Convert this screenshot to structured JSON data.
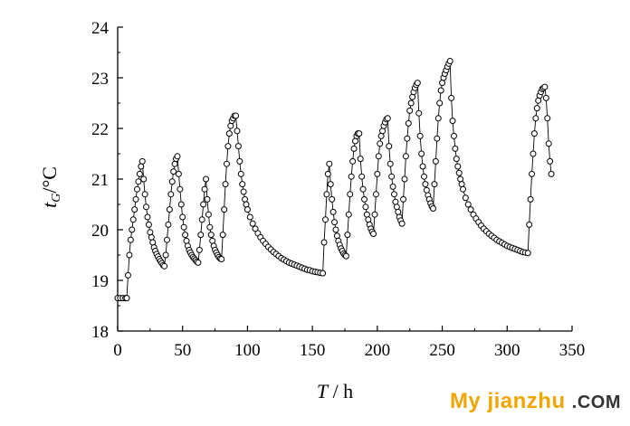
{
  "chart_data": {
    "type": "scatter",
    "xlabel": "T / h",
    "ylabel": "tG/°C",
    "xlim": [
      0,
      350
    ],
    "ylim": [
      18,
      24
    ],
    "x_ticks": [
      "0",
      "50",
      "100",
      "150",
      "200",
      "250",
      "300",
      "350"
    ],
    "y_ticks": [
      "18",
      "19",
      "20",
      "21",
      "22",
      "23",
      "24"
    ],
    "grid": false,
    "marker": "open-circle",
    "line": true,
    "series_color": "#000000",
    "points": [
      [
        0,
        18.65
      ],
      [
        2,
        18.65
      ],
      [
        4,
        18.65
      ],
      [
        6,
        18.65
      ],
      [
        7,
        18.65
      ],
      [
        8,
        19.1
      ],
      [
        9,
        19.5
      ],
      [
        10,
        19.8
      ],
      [
        11,
        20.0
      ],
      [
        12,
        20.2
      ],
      [
        13,
        20.4
      ],
      [
        14,
        20.6
      ],
      [
        15,
        20.8
      ],
      [
        16,
        20.95
      ],
      [
        17,
        21.1
      ],
      [
        18,
        21.25
      ],
      [
        19,
        21.35
      ],
      [
        20,
        21.0
      ],
      [
        21,
        20.7
      ],
      [
        22,
        20.45
      ],
      [
        23,
        20.25
      ],
      [
        24,
        20.1
      ],
      [
        25,
        19.95
      ],
      [
        26,
        19.85
      ],
      [
        27,
        19.75
      ],
      [
        28,
        19.65
      ],
      [
        29,
        19.58
      ],
      [
        30,
        19.52
      ],
      [
        31,
        19.47
      ],
      [
        32,
        19.42
      ],
      [
        33,
        19.38
      ],
      [
        34,
        19.34
      ],
      [
        35,
        19.3
      ],
      [
        36,
        19.28
      ],
      [
        37,
        19.5
      ],
      [
        38,
        19.8
      ],
      [
        39,
        20.1
      ],
      [
        40,
        20.4
      ],
      [
        41,
        20.7
      ],
      [
        42,
        20.95
      ],
      [
        43,
        21.15
      ],
      [
        44,
        21.3
      ],
      [
        45,
        21.4
      ],
      [
        46,
        21.45
      ],
      [
        47,
        21.1
      ],
      [
        48,
        20.8
      ],
      [
        49,
        20.5
      ],
      [
        50,
        20.25
      ],
      [
        51,
        20.05
      ],
      [
        52,
        19.9
      ],
      [
        53,
        19.78
      ],
      [
        54,
        19.68
      ],
      [
        55,
        19.6
      ],
      [
        56,
        19.55
      ],
      [
        57,
        19.5
      ],
      [
        58,
        19.46
      ],
      [
        59,
        19.43
      ],
      [
        60,
        19.4
      ],
      [
        61,
        19.37
      ],
      [
        62,
        19.35
      ],
      [
        63,
        19.6
      ],
      [
        64,
        19.9
      ],
      [
        65,
        20.2
      ],
      [
        66,
        20.5
      ],
      [
        67,
        20.8
      ],
      [
        68,
        21.0
      ],
      [
        69,
        20.6
      ],
      [
        70,
        20.3
      ],
      [
        71,
        20.05
      ],
      [
        72,
        19.9
      ],
      [
        73,
        19.78
      ],
      [
        74,
        19.68
      ],
      [
        75,
        19.6
      ],
      [
        76,
        19.55
      ],
      [
        77,
        19.5
      ],
      [
        78,
        19.46
      ],
      [
        79,
        19.43
      ],
      [
        80,
        19.42
      ],
      [
        81,
        19.9
      ],
      [
        82,
        20.4
      ],
      [
        83,
        20.9
      ],
      [
        84,
        21.3
      ],
      [
        85,
        21.65
      ],
      [
        86,
        21.9
      ],
      [
        87,
        22.05
      ],
      [
        88,
        22.15
      ],
      [
        89,
        22.2
      ],
      [
        90,
        22.25
      ],
      [
        91,
        22.25
      ],
      [
        92,
        21.95
      ],
      [
        93,
        21.65
      ],
      [
        94,
        21.35
      ],
      [
        95,
        21.1
      ],
      [
        96,
        20.9
      ],
      [
        97,
        20.75
      ],
      [
        98,
        20.6
      ],
      [
        99,
        20.5
      ],
      [
        100,
        20.4
      ],
      [
        102,
        20.25
      ],
      [
        104,
        20.12
      ],
      [
        106,
        20.02
      ],
      [
        108,
        19.93
      ],
      [
        110,
        19.85
      ],
      [
        112,
        19.78
      ],
      [
        114,
        19.72
      ],
      [
        116,
        19.66
      ],
      [
        118,
        19.61
      ],
      [
        120,
        19.56
      ],
      [
        122,
        19.52
      ],
      [
        124,
        19.48
      ],
      [
        126,
        19.44
      ],
      [
        128,
        19.41
      ],
      [
        130,
        19.38
      ],
      [
        132,
        19.35
      ],
      [
        134,
        19.33
      ],
      [
        136,
        19.31
      ],
      [
        138,
        19.29
      ],
      [
        140,
        19.27
      ],
      [
        142,
        19.25
      ],
      [
        144,
        19.23
      ],
      [
        146,
        19.21
      ],
      [
        148,
        19.2
      ],
      [
        150,
        19.18
      ],
      [
        152,
        19.17
      ],
      [
        154,
        19.16
      ],
      [
        156,
        19.15
      ],
      [
        158,
        19.14
      ],
      [
        159,
        19.75
      ],
      [
        160,
        20.2
      ],
      [
        161,
        20.7
      ],
      [
        162,
        21.1
      ],
      [
        163,
        21.3
      ],
      [
        164,
        20.9
      ],
      [
        165,
        20.6
      ],
      [
        166,
        20.35
      ],
      [
        167,
        20.15
      ],
      [
        168,
        20.0
      ],
      [
        169,
        19.88
      ],
      [
        170,
        19.78
      ],
      [
        171,
        19.7
      ],
      [
        172,
        19.63
      ],
      [
        173,
        19.58
      ],
      [
        174,
        19.53
      ],
      [
        175,
        19.5
      ],
      [
        176,
        19.48
      ],
      [
        177,
        19.9
      ],
      [
        178,
        20.3
      ],
      [
        179,
        20.7
      ],
      [
        180,
        21.05
      ],
      [
        181,
        21.35
      ],
      [
        182,
        21.6
      ],
      [
        183,
        21.75
      ],
      [
        184,
        21.85
      ],
      [
        185,
        21.9
      ],
      [
        186,
        21.9
      ],
      [
        187,
        21.4
      ],
      [
        188,
        21.05
      ],
      [
        189,
        20.8
      ],
      [
        190,
        20.6
      ],
      [
        191,
        20.45
      ],
      [
        192,
        20.3
      ],
      [
        193,
        20.2
      ],
      [
        194,
        20.1
      ],
      [
        195,
        20.02
      ],
      [
        196,
        19.96
      ],
      [
        197,
        19.92
      ],
      [
        198,
        20.3
      ],
      [
        199,
        20.7
      ],
      [
        200,
        21.1
      ],
      [
        201,
        21.45
      ],
      [
        202,
        21.7
      ],
      [
        203,
        21.85
      ],
      [
        204,
        21.95
      ],
      [
        205,
        22.05
      ],
      [
        206,
        22.12
      ],
      [
        207,
        22.18
      ],
      [
        208,
        22.2
      ],
      [
        209,
        21.65
      ],
      [
        210,
        21.3
      ],
      [
        211,
        21.05
      ],
      [
        212,
        20.85
      ],
      [
        213,
        20.7
      ],
      [
        214,
        20.55
      ],
      [
        215,
        20.45
      ],
      [
        216,
        20.35
      ],
      [
        217,
        20.25
      ],
      [
        218,
        20.18
      ],
      [
        219,
        20.12
      ],
      [
        220,
        20.6
      ],
      [
        221,
        21.0
      ],
      [
        222,
        21.45
      ],
      [
        223,
        21.8
      ],
      [
        224,
        22.1
      ],
      [
        225,
        22.35
      ],
      [
        226,
        22.5
      ],
      [
        227,
        22.62
      ],
      [
        228,
        22.72
      ],
      [
        229,
        22.8
      ],
      [
        230,
        22.86
      ],
      [
        231,
        22.9
      ],
      [
        232,
        22.3
      ],
      [
        233,
        21.85
      ],
      [
        234,
        21.5
      ],
      [
        235,
        21.25
      ],
      [
        236,
        21.05
      ],
      [
        237,
        20.9
      ],
      [
        238,
        20.78
      ],
      [
        239,
        20.68
      ],
      [
        240,
        20.6
      ],
      [
        241,
        20.52
      ],
      [
        242,
        20.46
      ],
      [
        243,
        20.42
      ],
      [
        244,
        20.9
      ],
      [
        245,
        21.35
      ],
      [
        246,
        21.8
      ],
      [
        247,
        22.2
      ],
      [
        248,
        22.5
      ],
      [
        249,
        22.75
      ],
      [
        250,
        22.9
      ],
      [
        251,
        23.0
      ],
      [
        252,
        23.08
      ],
      [
        253,
        23.15
      ],
      [
        254,
        23.22
      ],
      [
        255,
        23.28
      ],
      [
        256,
        23.33
      ],
      [
        257,
        22.6
      ],
      [
        258,
        22.15
      ],
      [
        259,
        21.85
      ],
      [
        260,
        21.6
      ],
      [
        261,
        21.4
      ],
      [
        262,
        21.25
      ],
      [
        263,
        21.12
      ],
      [
        264,
        21.0
      ],
      [
        265,
        20.9
      ],
      [
        266,
        20.8
      ],
      [
        268,
        20.63
      ],
      [
        270,
        20.5
      ],
      [
        272,
        20.4
      ],
      [
        274,
        20.3
      ],
      [
        276,
        20.22
      ],
      [
        278,
        20.15
      ],
      [
        280,
        20.08
      ],
      [
        282,
        20.02
      ],
      [
        284,
        19.97
      ],
      [
        286,
        19.92
      ],
      [
        288,
        19.88
      ],
      [
        290,
        19.84
      ],
      [
        292,
        19.8
      ],
      [
        294,
        19.77
      ],
      [
        296,
        19.74
      ],
      [
        298,
        19.71
      ],
      [
        300,
        19.68
      ],
      [
        302,
        19.66
      ],
      [
        304,
        19.64
      ],
      [
        306,
        19.62
      ],
      [
        308,
        19.6
      ],
      [
        310,
        19.58
      ],
      [
        312,
        19.56
      ],
      [
        314,
        19.55
      ],
      [
        316,
        19.54
      ],
      [
        317,
        20.1
      ],
      [
        318,
        20.6
      ],
      [
        319,
        21.1
      ],
      [
        320,
        21.5
      ],
      [
        321,
        21.9
      ],
      [
        322,
        22.2
      ],
      [
        323,
        22.4
      ],
      [
        324,
        22.55
      ],
      [
        325,
        22.65
      ],
      [
        326,
        22.72
      ],
      [
        327,
        22.78
      ],
      [
        328,
        22.8
      ],
      [
        329,
        22.82
      ],
      [
        330,
        22.6
      ],
      [
        331,
        22.2
      ],
      [
        332,
        21.7
      ],
      [
        333,
        21.35
      ],
      [
        334,
        21.1
      ]
    ]
  },
  "watermark": {
    "brand": "My jianzhu",
    "suffix": ".COM"
  }
}
